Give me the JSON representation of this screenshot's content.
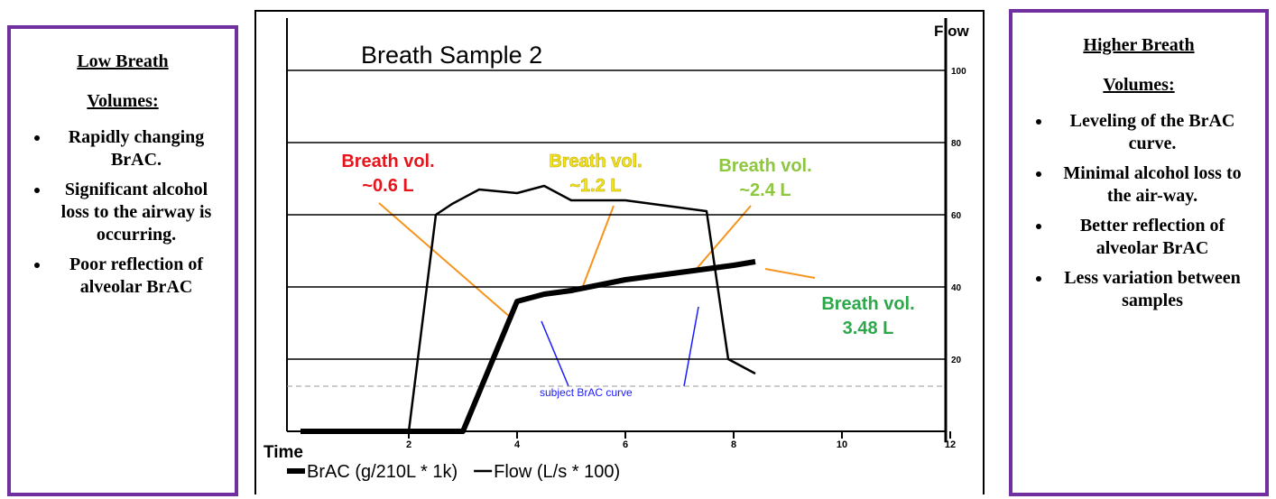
{
  "left_panel": {
    "heading": "Low Breath Volumes:",
    "bullets": [
      "Rapidly changing BrAC.",
      "Significant alcohol loss to the airway is occurring.",
      "Poor reflection of alveolar BrAC"
    ]
  },
  "right_panel": {
    "heading": "Higher Breath Volumes:",
    "bullets": [
      "Leveling of the BrAC curve.",
      "Minimal alcohol loss to the air-way.",
      "Better reflection of alveolar BrAC",
      "Less variation between samples"
    ]
  },
  "chart_data": {
    "type": "line",
    "title": "Breath Sample 2",
    "x_label": "Time",
    "y_label": "Flow",
    "xlim": [
      0,
      12
    ],
    "xticks": [
      2,
      4,
      6,
      8,
      10,
      12
    ],
    "ylim": [
      0,
      115
    ],
    "yticks": [
      20,
      40,
      60,
      80,
      100
    ],
    "grid": true,
    "reference_line": 12.5,
    "series": [
      {
        "name": "BrAC (g/210L * 1k)",
        "color": "#000000",
        "x": [
          0,
          3.0,
          3.5,
          4.0,
          4.5,
          5.0,
          6.0,
          7.0,
          8.0,
          8.4
        ],
        "values": [
          0,
          0,
          18,
          36,
          38,
          39,
          42,
          44,
          46,
          47
        ]
      },
      {
        "name": "Flow (L/s * 100)",
        "color": "#000000",
        "x": [
          2.0,
          2.5,
          2.8,
          3.3,
          4.0,
          4.5,
          5.0,
          6.0,
          7.0,
          7.5,
          7.9,
          8.4
        ],
        "values": [
          0,
          60,
          63,
          67,
          66,
          68,
          64,
          64,
          62,
          61,
          20,
          16
        ]
      }
    ],
    "annotations": [
      {
        "lines": [
          "Breath vol.",
          "~0.6 L"
        ],
        "color": "#e8141b"
      },
      {
        "lines": [
          "Breath vol.",
          "~1.2 L"
        ],
        "color": "#f2e418"
      },
      {
        "lines": [
          "Breath vol.",
          "~2.4 L"
        ],
        "color": "#8dc63f"
      },
      {
        "lines": [
          "Breath vol.",
          "3.48 L"
        ],
        "color": "#2ca84a"
      }
    ],
    "curve_note": "subject BrAC curve"
  }
}
